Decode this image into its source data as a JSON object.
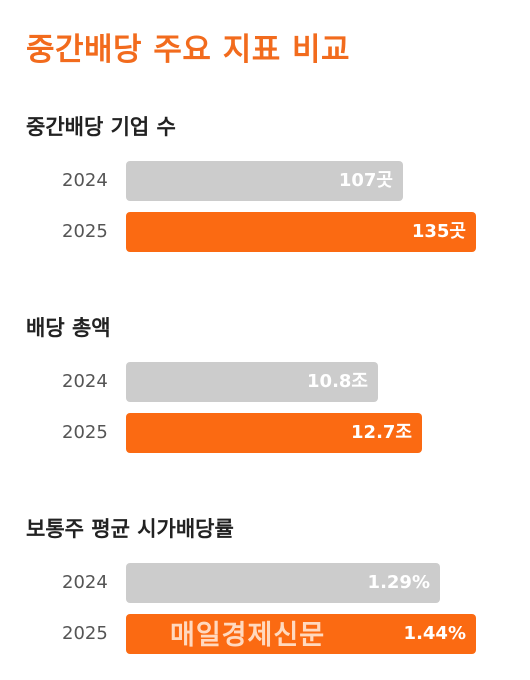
{
  "title": "중간배당 주요 지표 비교",
  "colors": {
    "accent": "#f26b1d",
    "bar_2024": "#cccccc",
    "bar_2025": "#fb6a12"
  },
  "watermark": "매일경제신문",
  "chart_data": [
    {
      "type": "bar",
      "orientation": "horizontal",
      "title": "중간배당 기업 수",
      "categories": [
        "2024",
        "2025"
      ],
      "values": [
        107,
        135
      ],
      "value_labels": [
        "107곳",
        "135곳"
      ],
      "xlim": [
        0,
        135
      ]
    },
    {
      "type": "bar",
      "orientation": "horizontal",
      "title": "배당 총액",
      "categories": [
        "2024",
        "2025"
      ],
      "values": [
        10.8,
        12.7
      ],
      "value_labels": [
        "10.8조",
        "12.7조"
      ],
      "xlim": [
        0,
        15
      ]
    },
    {
      "type": "bar",
      "orientation": "horizontal",
      "title": "보통주 평균 시가배당률",
      "categories": [
        "2024",
        "2025"
      ],
      "values": [
        1.29,
        1.44
      ],
      "value_labels": [
        "1.29%",
        "1.44%"
      ],
      "xlim": [
        0,
        1.44
      ]
    }
  ]
}
